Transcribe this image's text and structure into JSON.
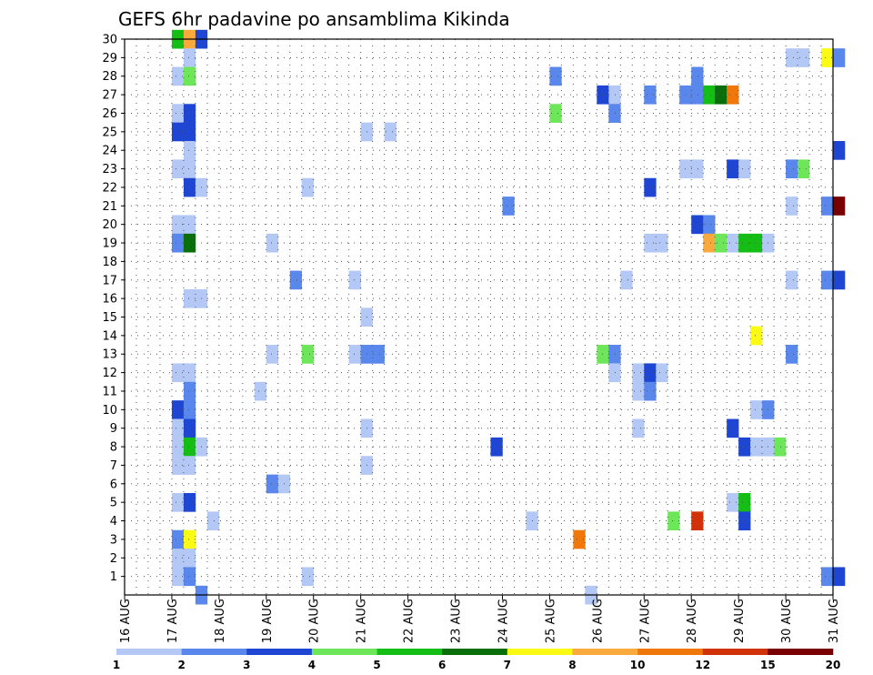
{
  "chart_data": {
    "type": "heatmap",
    "title": "GEFS 6hr padavine po ansamblima Kikinda",
    "y": {
      "labels": [
        "1",
        "2",
        "3",
        "4",
        "5",
        "6",
        "7",
        "8",
        "9",
        "10",
        "11",
        "12",
        "13",
        "14",
        "15",
        "16",
        "17",
        "18",
        "19",
        "20",
        "21",
        "22",
        "23",
        "24",
        "25",
        "26",
        "27",
        "28",
        "29",
        "30"
      ],
      "min": 0,
      "max": 30
    },
    "x": {
      "labels": [
        "16 AUG",
        "17 AUG",
        "18 AUG",
        "19 AUG",
        "20 AUG",
        "21 AUG",
        "22 AUG",
        "23 AUG",
        "24 AUG",
        "25 AUG",
        "26 AUG",
        "27 AUG",
        "28 AUG",
        "29 AUG",
        "30 AUG",
        "31 AUG"
      ],
      "steps_per_day": 4,
      "step_hours": 6,
      "grid": true
    },
    "colorbar": {
      "tick_labels": [
        "1",
        "2",
        "3",
        "4",
        "5",
        "6",
        "7",
        "8",
        "10",
        "12",
        "15",
        "20"
      ],
      "colors": [
        "#b4c8f5",
        "#5a87eb",
        "#1e46d2",
        "#6ee65a",
        "#14be14",
        "#0a6e0a",
        "#fafa14",
        "#faaa3c",
        "#f0780a",
        "#d2320a",
        "#780000"
      ]
    },
    "cells": [
      [
        "17 AUG",
        0,
        30,
        5
      ],
      [
        "17 AUG",
        1,
        30,
        8
      ],
      [
        "17 AUG",
        2,
        30,
        3
      ],
      [
        "17 AUG",
        1,
        29,
        1
      ],
      [
        "30 AUG",
        0,
        29,
        1
      ],
      [
        "30 AUG",
        1,
        29,
        1
      ],
      [
        "30 AUG",
        3,
        29,
        7
      ],
      [
        "31 AUG",
        0,
        29,
        2
      ],
      [
        "17 AUG",
        0,
        28,
        1
      ],
      [
        "17 AUG",
        1,
        28,
        4
      ],
      [
        "25 AUG",
        0,
        28,
        2
      ],
      [
        "28 AUG",
        0,
        28,
        2
      ],
      [
        "26 AUG",
        0,
        27,
        3
      ],
      [
        "26 AUG",
        1,
        27,
        1
      ],
      [
        "27 AUG",
        0,
        27,
        2
      ],
      [
        "27 AUG",
        3,
        27,
        2
      ],
      [
        "28 AUG",
        0,
        27,
        2
      ],
      [
        "28 AUG",
        1,
        27,
        5
      ],
      [
        "28 AUG",
        2,
        27,
        6
      ],
      [
        "28 AUG",
        3,
        27,
        9
      ],
      [
        "17 AUG",
        0,
        26,
        1
      ],
      [
        "17 AUG",
        1,
        26,
        3
      ],
      [
        "25 AUG",
        0,
        26,
        4
      ],
      [
        "26 AUG",
        1,
        26,
        2
      ],
      [
        "17 AUG",
        0,
        25,
        3
      ],
      [
        "17 AUG",
        1,
        25,
        3
      ],
      [
        "21 AUG",
        0,
        25,
        1
      ],
      [
        "21 AUG",
        2,
        25,
        1
      ],
      [
        "17 AUG",
        1,
        24,
        1
      ],
      [
        "31 AUG",
        0,
        24,
        3
      ],
      [
        "17 AUG",
        0,
        23,
        1
      ],
      [
        "17 AUG",
        1,
        23,
        1
      ],
      [
        "27 AUG",
        3,
        23,
        1
      ],
      [
        "28 AUG",
        0,
        23,
        1
      ],
      [
        "28 AUG",
        3,
        23,
        3
      ],
      [
        "29 AUG",
        0,
        23,
        1
      ],
      [
        "30 AUG",
        0,
        23,
        2
      ],
      [
        "30 AUG",
        1,
        23,
        4
      ],
      [
        "17 AUG",
        1,
        22,
        3
      ],
      [
        "17 AUG",
        2,
        22,
        1
      ],
      [
        "19 AUG",
        3,
        22,
        1
      ],
      [
        "27 AUG",
        0,
        22,
        3
      ],
      [
        "24 AUG",
        0,
        21,
        2
      ],
      [
        "30 AUG",
        0,
        21,
        1
      ],
      [
        "30 AUG",
        3,
        21,
        2
      ],
      [
        "31 AUG",
        0,
        21,
        11
      ],
      [
        "17 AUG",
        0,
        20,
        1
      ],
      [
        "17 AUG",
        1,
        20,
        1
      ],
      [
        "28 AUG",
        0,
        20,
        3
      ],
      [
        "28 AUG",
        1,
        20,
        2
      ],
      [
        "17 AUG",
        0,
        19,
        2
      ],
      [
        "17 AUG",
        1,
        19,
        6
      ],
      [
        "19 AUG",
        0,
        19,
        1
      ],
      [
        "27 AUG",
        0,
        19,
        1
      ],
      [
        "27 AUG",
        1,
        19,
        1
      ],
      [
        "28 AUG",
        1,
        19,
        8
      ],
      [
        "28 AUG",
        2,
        19,
        4
      ],
      [
        "28 AUG",
        3,
        19,
        1
      ],
      [
        "29 AUG",
        0,
        19,
        5
      ],
      [
        "29 AUG",
        1,
        19,
        5
      ],
      [
        "29 AUG",
        2,
        19,
        1
      ],
      [
        "19 AUG",
        2,
        17,
        2
      ],
      [
        "20 AUG",
        3,
        17,
        1
      ],
      [
        "26 AUG",
        2,
        17,
        1
      ],
      [
        "30 AUG",
        0,
        17,
        1
      ],
      [
        "30 AUG",
        3,
        17,
        2
      ],
      [
        "31 AUG",
        0,
        17,
        3
      ],
      [
        "17 AUG",
        1,
        16,
        1
      ],
      [
        "17 AUG",
        2,
        16,
        1
      ],
      [
        "21 AUG",
        0,
        15,
        1
      ],
      [
        "29 AUG",
        1,
        14,
        7
      ],
      [
        "19 AUG",
        0,
        13,
        1
      ],
      [
        "19 AUG",
        3,
        13,
        4
      ],
      [
        "20 AUG",
        3,
        13,
        1
      ],
      [
        "21 AUG",
        0,
        13,
        2
      ],
      [
        "21 AUG",
        1,
        13,
        2
      ],
      [
        "26 AUG",
        0,
        13,
        4
      ],
      [
        "26 AUG",
        1,
        13,
        2
      ],
      [
        "30 AUG",
        0,
        13,
        2
      ],
      [
        "17 AUG",
        0,
        12,
        1
      ],
      [
        "17 AUG",
        1,
        12,
        1
      ],
      [
        "26 AUG",
        1,
        12,
        1
      ],
      [
        "26 AUG",
        3,
        12,
        1
      ],
      [
        "27 AUG",
        0,
        12,
        3
      ],
      [
        "27 AUG",
        1,
        12,
        1
      ],
      [
        "17 AUG",
        1,
        11,
        2
      ],
      [
        "18 AUG",
        3,
        11,
        1
      ],
      [
        "26 AUG",
        3,
        11,
        1
      ],
      [
        "27 AUG",
        0,
        11,
        2
      ],
      [
        "17 AUG",
        0,
        10,
        3
      ],
      [
        "17 AUG",
        1,
        10,
        2
      ],
      [
        "29 AUG",
        1,
        10,
        1
      ],
      [
        "29 AUG",
        2,
        10,
        2
      ],
      [
        "17 AUG",
        0,
        9,
        1
      ],
      [
        "17 AUG",
        1,
        9,
        3
      ],
      [
        "21 AUG",
        0,
        9,
        1
      ],
      [
        "26 AUG",
        3,
        9,
        1
      ],
      [
        "28 AUG",
        3,
        9,
        3
      ],
      [
        "17 AUG",
        0,
        8,
        1
      ],
      [
        "17 AUG",
        1,
        8,
        5
      ],
      [
        "17 AUG",
        2,
        8,
        1
      ],
      [
        "23 AUG",
        3,
        8,
        3
      ],
      [
        "29 AUG",
        0,
        8,
        3
      ],
      [
        "29 AUG",
        1,
        8,
        1
      ],
      [
        "29 AUG",
        2,
        8,
        1
      ],
      [
        "29 AUG",
        3,
        8,
        4
      ],
      [
        "17 AUG",
        0,
        7,
        1
      ],
      [
        "17 AUG",
        1,
        7,
        1
      ],
      [
        "21 AUG",
        0,
        7,
        1
      ],
      [
        "19 AUG",
        0,
        6,
        2
      ],
      [
        "19 AUG",
        1,
        6,
        1
      ],
      [
        "17 AUG",
        0,
        5,
        1
      ],
      [
        "17 AUG",
        1,
        5,
        3
      ],
      [
        "28 AUG",
        3,
        5,
        1
      ],
      [
        "29 AUG",
        0,
        5,
        5
      ],
      [
        "17 AUG",
        3,
        4,
        1
      ],
      [
        "24 AUG",
        2,
        4,
        1
      ],
      [
        "27 AUG",
        2,
        4,
        4
      ],
      [
        "28 AUG",
        0,
        4,
        10
      ],
      [
        "29 AUG",
        0,
        4,
        3
      ],
      [
        "17 AUG",
        0,
        3,
        2
      ],
      [
        "17 AUG",
        1,
        3,
        7
      ],
      [
        "25 AUG",
        2,
        3,
        9
      ],
      [
        "17 AUG",
        0,
        2,
        1
      ],
      [
        "17 AUG",
        1,
        2,
        1
      ],
      [
        "17 AUG",
        0,
        1,
        1
      ],
      [
        "17 AUG",
        1,
        1,
        2
      ],
      [
        "19 AUG",
        3,
        1,
        1
      ],
      [
        "30 AUG",
        3,
        1,
        2
      ],
      [
        "31 AUG",
        0,
        1,
        3
      ],
      [
        "17 AUG",
        2,
        0,
        2
      ],
      [
        "25 AUG",
        3,
        0,
        1
      ]
    ]
  }
}
